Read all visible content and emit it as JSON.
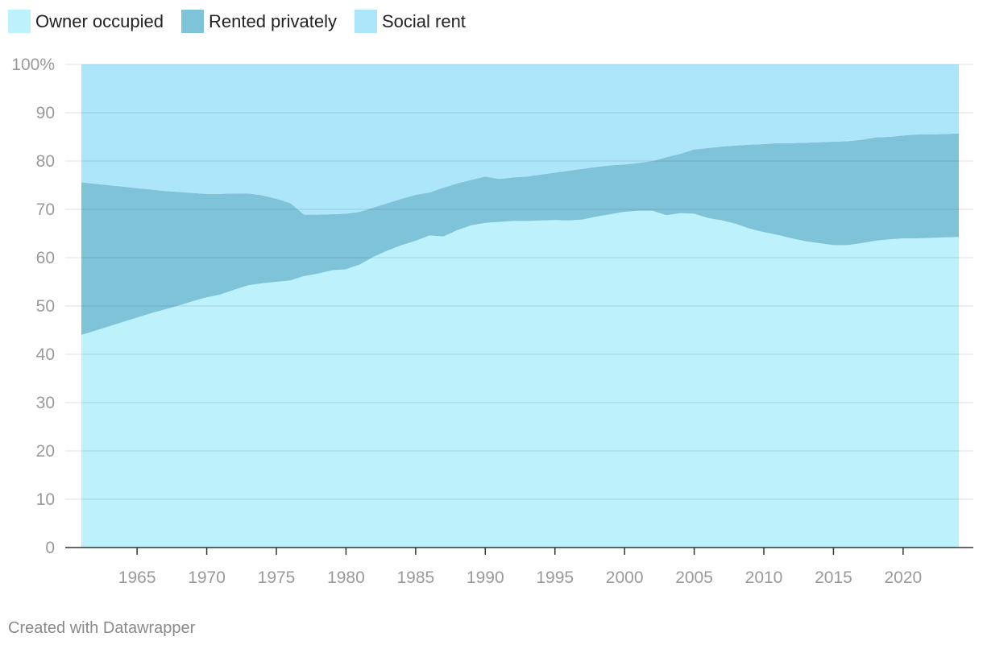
{
  "legend": [
    {
      "label": "Owner occupied",
      "color": "#bdf1fc"
    },
    {
      "label": "Rented privately",
      "color": "#7fc3d9"
    },
    {
      "label": "Social rent",
      "color": "#ade6fa"
    }
  ],
  "footer": "Created with Datawrapper",
  "chart_data": {
    "type": "area",
    "stacked": true,
    "x": [
      1961,
      1962,
      1963,
      1964,
      1965,
      1966,
      1967,
      1968,
      1969,
      1970,
      1971,
      1972,
      1973,
      1974,
      1975,
      1976,
      1977,
      1978,
      1979,
      1980,
      1981,
      1982,
      1983,
      1984,
      1985,
      1986,
      1987,
      1988,
      1989,
      1990,
      1991,
      1992,
      1993,
      1994,
      1995,
      1996,
      1997,
      1998,
      1999,
      2000,
      2001,
      2002,
      2003,
      2004,
      2005,
      2006,
      2007,
      2008,
      2009,
      2010,
      2011,
      2012,
      2013,
      2014,
      2015,
      2016,
      2017,
      2018,
      2019,
      2020,
      2021,
      2022,
      2023,
      2024
    ],
    "series": [
      {
        "name": "Owner occupied",
        "color": "#bdf1fc",
        "values": [
          44.0,
          44.9,
          45.8,
          46.7,
          47.6,
          48.5,
          49.3,
          50.1,
          51.0,
          51.8,
          52.4,
          53.4,
          54.3,
          54.7,
          55.0,
          55.3,
          56.2,
          56.7,
          57.4,
          57.6,
          58.6,
          60.2,
          61.5,
          62.6,
          63.5,
          64.6,
          64.4,
          65.7,
          66.7,
          67.2,
          67.4,
          67.6,
          67.6,
          67.7,
          67.8,
          67.7,
          67.9,
          68.5,
          69.0,
          69.5,
          69.7,
          69.7,
          68.8,
          69.2,
          69.1,
          68.2,
          67.7,
          67.0,
          66.0,
          65.3,
          64.7,
          64.0,
          63.4,
          63.0,
          62.6,
          62.6,
          63.0,
          63.5,
          63.8,
          64.0,
          64.0,
          64.1,
          64.2,
          64.3
        ]
      },
      {
        "name": "Rented privately",
        "color": "#7fc3d9",
        "values": [
          31.6,
          30.4,
          29.2,
          28.0,
          26.8,
          25.6,
          24.5,
          23.5,
          22.4,
          21.4,
          20.8,
          19.9,
          19.0,
          18.2,
          17.2,
          16.0,
          12.7,
          12.2,
          11.6,
          11.5,
          10.9,
          10.2,
          9.8,
          9.6,
          9.5,
          8.9,
          10.1,
          9.7,
          9.4,
          9.6,
          8.9,
          9.0,
          9.2,
          9.5,
          9.8,
          10.3,
          10.5,
          10.3,
          10.1,
          9.8,
          9.9,
          10.3,
          12.0,
          12.3,
          13.3,
          14.5,
          15.3,
          16.2,
          17.4,
          18.2,
          19.0,
          19.7,
          20.4,
          20.9,
          21.4,
          21.5,
          21.4,
          21.4,
          21.2,
          21.3,
          21.5,
          21.4,
          21.4,
          21.4
        ]
      },
      {
        "name": "Social rent",
        "color": "#ade6fa",
        "values": [
          24.4,
          24.7,
          25.0,
          25.3,
          25.6,
          25.9,
          26.2,
          26.4,
          26.6,
          26.8,
          26.8,
          26.7,
          26.7,
          27.1,
          27.8,
          28.7,
          31.1,
          31.1,
          31.0,
          30.9,
          30.5,
          29.6,
          28.7,
          27.8,
          27.0,
          26.5,
          25.5,
          24.6,
          23.9,
          23.2,
          23.7,
          23.4,
          23.2,
          22.8,
          22.4,
          22.0,
          21.6,
          21.2,
          20.9,
          20.7,
          20.4,
          20.0,
          19.2,
          18.5,
          17.6,
          17.3,
          17.0,
          16.8,
          16.6,
          16.5,
          16.3,
          16.3,
          16.2,
          16.1,
          16.0,
          15.9,
          15.6,
          15.1,
          15.0,
          14.7,
          14.5,
          14.5,
          14.4,
          14.3
        ]
      }
    ],
    "ylim": [
      0,
      100
    ],
    "yticks": [
      {
        "value": 0,
        "label": "0"
      },
      {
        "value": 10,
        "label": "10"
      },
      {
        "value": 20,
        "label": "20"
      },
      {
        "value": 30,
        "label": "30"
      },
      {
        "value": 40,
        "label": "40"
      },
      {
        "value": 50,
        "label": "50"
      },
      {
        "value": 60,
        "label": "60"
      },
      {
        "value": 70,
        "label": "70"
      },
      {
        "value": 80,
        "label": "80"
      },
      {
        "value": 90,
        "label": "90"
      },
      {
        "value": 100,
        "label": "100%"
      }
    ],
    "xticks": [
      {
        "value": 1965,
        "label": "1965"
      },
      {
        "value": 1970,
        "label": "1970"
      },
      {
        "value": 1975,
        "label": "1975"
      },
      {
        "value": 1980,
        "label": "1980"
      },
      {
        "value": 1985,
        "label": "1985"
      },
      {
        "value": 1990,
        "label": "1990"
      },
      {
        "value": 1995,
        "label": "1995"
      },
      {
        "value": 2000,
        "label": "2000"
      },
      {
        "value": 2005,
        "label": "2005"
      },
      {
        "value": 2010,
        "label": "2010"
      },
      {
        "value": 2015,
        "label": "2015"
      },
      {
        "value": 2020,
        "label": "2020"
      }
    ],
    "grid": true,
    "legend_position": "top-left"
  }
}
